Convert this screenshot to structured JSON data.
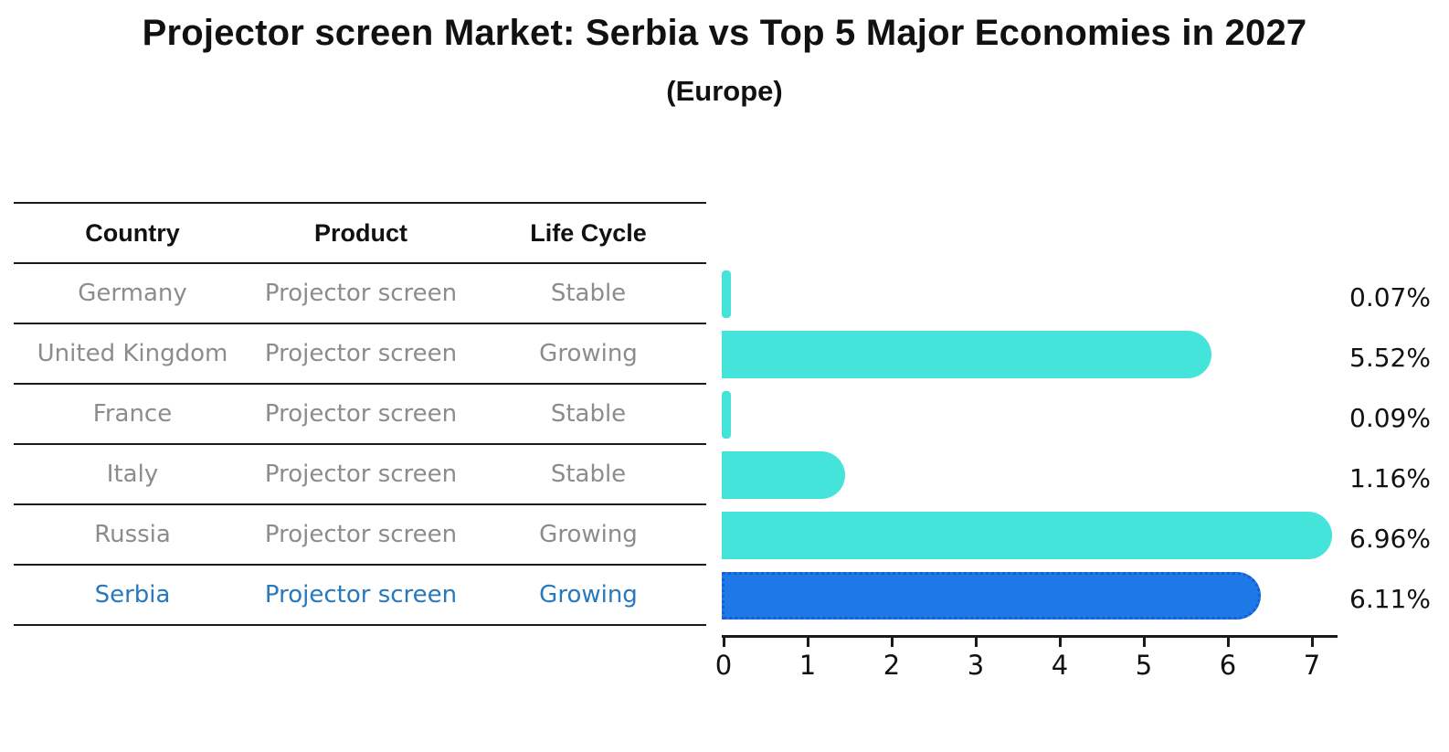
{
  "title": "Projector screen Market: Serbia vs Top 5 Major Economies in 2027",
  "subtitle": "(Europe)",
  "table": {
    "headers": [
      "Country",
      "Product",
      "Life Cycle"
    ],
    "rows": [
      {
        "country": "Germany",
        "product": "Projector screen",
        "life_cycle": "Stable",
        "highlight": false
      },
      {
        "country": "United Kingdom",
        "product": "Projector screen",
        "life_cycle": "Growing",
        "highlight": false
      },
      {
        "country": "France",
        "product": "Projector screen",
        "life_cycle": "Stable",
        "highlight": false
      },
      {
        "country": "Italy",
        "product": "Projector screen",
        "life_cycle": "Stable",
        "highlight": false
      },
      {
        "country": "Russia",
        "product": "Projector screen",
        "life_cycle": "Growing",
        "highlight": false
      },
      {
        "country": "Serbia",
        "product": "Projector screen",
        "life_cycle": "Growing",
        "highlight": true
      }
    ]
  },
  "chart_data": {
    "type": "bar",
    "orientation": "horizontal",
    "title": "Projector screen Market: Serbia vs Top 5 Major Economies in 2027",
    "subtitle": "(Europe)",
    "categories": [
      "Germany",
      "United Kingdom",
      "France",
      "Italy",
      "Russia",
      "Serbia"
    ],
    "values": [
      0.07,
      5.52,
      0.09,
      1.16,
      6.96,
      6.11
    ],
    "value_labels": [
      "0.07%",
      "5.52%",
      "0.09%",
      "1.16%",
      "6.96%",
      "6.11%"
    ],
    "unit": "%",
    "xlim": [
      0,
      7.3
    ],
    "xticks": [
      0,
      1,
      2,
      3,
      4,
      5,
      6,
      7
    ],
    "grid": false,
    "legend": false,
    "highlight_index": 5,
    "bar_color": "#45e4da",
    "highlight_color": "#1e78e8",
    "highlight_border_color": "#1560cc",
    "highlight_text_color": "#2878be",
    "axis_color": "#1a1a1a",
    "label_color": "#111111",
    "row_text_color": "#8c8c8c"
  }
}
